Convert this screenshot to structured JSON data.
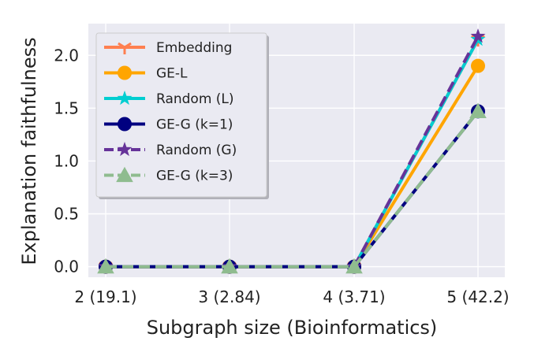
{
  "chart_data": {
    "type": "line",
    "categories": [
      "2 (19.1)",
      "3 (2.84)",
      "4 (3.71)",
      "5 (42.2)"
    ],
    "xlabel": "Subgraph size (Bioinformatics)",
    "ylabel": "Explanation faithfulness",
    "ylim": [
      -0.1,
      2.3
    ],
    "yticks": [
      0.0,
      0.5,
      1.0,
      1.5,
      2.0
    ],
    "ytick_labels": [
      "0.0",
      "0.5",
      "1.0",
      "1.5",
      "2.0"
    ],
    "grid": true,
    "legend_position": "top-left",
    "background": "#eaeaf2",
    "series": [
      {
        "name": "Embedding",
        "values": [
          0,
          0,
          0,
          2.15
        ],
        "color": "#ff7f50",
        "dash": "solid",
        "marker": "tri-down"
      },
      {
        "name": "GE-L",
        "values": [
          0,
          0,
          0,
          1.9
        ],
        "color": "#ffa500",
        "dash": "solid",
        "marker": "circle"
      },
      {
        "name": "Random (L)",
        "values": [
          0,
          0,
          0,
          2.15
        ],
        "color": "#00ced1",
        "dash": "solid",
        "marker": "star"
      },
      {
        "name": "GE-G (k=1)",
        "values": [
          0,
          0,
          0,
          1.47
        ],
        "color": "#000080",
        "dash": "solid",
        "marker": "circle"
      },
      {
        "name": "Random (G)",
        "values": [
          0,
          0,
          0,
          2.18
        ],
        "color": "#663399",
        "dash": "dashed",
        "marker": "star"
      },
      {
        "name": "GE-G (k=3)",
        "values": [
          0,
          0,
          0,
          1.47
        ],
        "color": "#8fbc8f",
        "dash": "dashed",
        "marker": "triangle"
      }
    ]
  }
}
